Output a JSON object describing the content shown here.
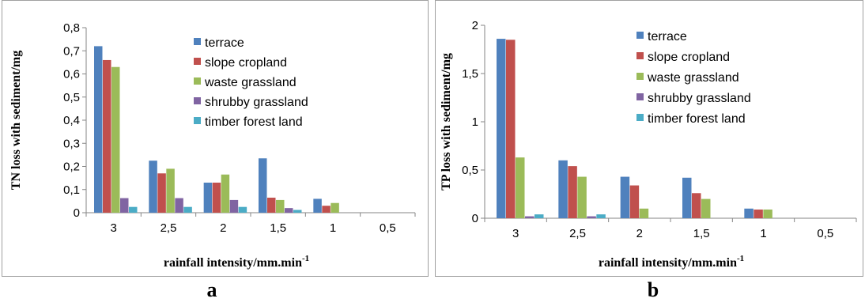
{
  "chart_data": [
    {
      "type": "bar",
      "panel_label": "a",
      "title": "",
      "categories": [
        "3",
        "2,5",
        "2",
        "1,5",
        "1",
        "0,5"
      ],
      "series": [
        {
          "name": "terrace",
          "values": [
            0.72,
            0.225,
            0.13,
            0.235,
            0.06,
            0
          ]
        },
        {
          "name": "slope cropland",
          "values": [
            0.66,
            0.17,
            0.13,
            0.065,
            0.03,
            0
          ]
        },
        {
          "name": "waste grassland",
          "values": [
            0.63,
            0.19,
            0.165,
            0.055,
            0.042,
            0
          ]
        },
        {
          "name": "shrubby grassland",
          "values": [
            0.063,
            0.063,
            0.055,
            0.02,
            0,
            0
          ]
        },
        {
          "name": "timber forest land",
          "values": [
            0.025,
            0.025,
            0.025,
            0.012,
            0,
            0
          ]
        }
      ],
      "xlabel": "rainfall intensity/mm.min",
      "xlabel_sup": "-1",
      "ylabel": "TN loss with sediment/mg",
      "ylim": [
        0,
        0.8
      ],
      "yticks": [
        "0",
        "0,1",
        "0,2",
        "0,3",
        "0,4",
        "0,5",
        "0,6",
        "0,7",
        "0,8"
      ],
      "legend_position": "top-right",
      "grid": false
    },
    {
      "type": "bar",
      "panel_label": "b",
      "title": "",
      "categories": [
        "3",
        "2,5",
        "2",
        "1,5",
        "1",
        "0,5"
      ],
      "series": [
        {
          "name": "terrace",
          "values": [
            1.86,
            0.6,
            0.43,
            0.42,
            0.1,
            0
          ]
        },
        {
          "name": "slope cropland",
          "values": [
            1.85,
            0.54,
            0.34,
            0.26,
            0.09,
            0
          ]
        },
        {
          "name": "waste grassland",
          "values": [
            0.63,
            0.43,
            0.1,
            0.2,
            0.09,
            0
          ]
        },
        {
          "name": "shrubby grassland",
          "values": [
            0.02,
            0.02,
            0,
            0,
            0,
            0
          ]
        },
        {
          "name": "timber forest land",
          "values": [
            0.04,
            0.04,
            0,
            0,
            0,
            0
          ]
        }
      ],
      "xlabel": "rainfall intensity/mm.min",
      "xlabel_sup": "-1",
      "ylabel": "TP loss with sediment/mg",
      "ylim": [
        0,
        2
      ],
      "yticks": [
        "0",
        "0,5",
        "1",
        "1,5",
        "2"
      ],
      "legend_position": "top-right",
      "grid": false
    }
  ],
  "colors": [
    "#4f81bd",
    "#c0504d",
    "#9bbb59",
    "#8064a2",
    "#4bacc6"
  ]
}
